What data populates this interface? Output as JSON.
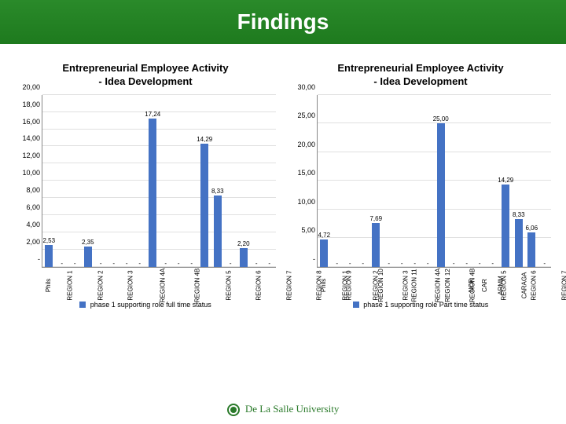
{
  "header": {
    "title": "Findings"
  },
  "footer": {
    "text": "De La Salle University"
  },
  "categories": [
    "Phils",
    "REGION 1",
    "REGION 2",
    "REGION 3",
    "REGION 4A",
    "REGION 4B",
    "REGION 5",
    "REGION 6",
    "REGION 7",
    "REGION 8",
    "REGION 9",
    "REGION 10",
    "REGION 11",
    "REGION 12",
    "NCR",
    "CAR",
    "ARMM",
    "CARAGA"
  ],
  "chart_left": {
    "title_line1": "Entrepreneurial Employee Activity",
    "title_line2": "- Idea Development",
    "type": "bar",
    "ymax": 20,
    "yticks": [
      "-",
      "2,00",
      "4,00",
      "6,00",
      "8,00",
      "10,00",
      "12,00",
      "14,00",
      "16,00",
      "18,00",
      "20,00"
    ],
    "values": [
      2.53,
      null,
      null,
      2.35,
      null,
      null,
      null,
      null,
      17.24,
      null,
      null,
      null,
      14.29,
      8.33,
      null,
      2.2,
      null,
      null
    ],
    "value_labels": [
      "2,53",
      "-",
      "-",
      "2,35",
      "-",
      "-",
      "-",
      "-",
      "17,24",
      "-",
      "-",
      "-",
      "14,29",
      "8,33",
      "-",
      "2,20",
      "-",
      "-"
    ],
    "bar_color": "#4472c4",
    "legend": "phase 1 supporting role full time status",
    "title_fontsize": 13,
    "label_fontsize": 9,
    "background_color": "#ffffff",
    "grid_color": "#e0e0e0"
  },
  "chart_right": {
    "title_line1": "Entrepreneurial Employee Activity",
    "title_line2": "- Idea Development",
    "type": "bar",
    "ymax": 30,
    "yticks": [
      "-",
      "5,00",
      "10,00",
      "15,00",
      "20,00",
      "25,00",
      "30,00"
    ],
    "values": [
      4.72,
      null,
      null,
      null,
      7.69,
      null,
      null,
      null,
      null,
      25.0,
      null,
      null,
      null,
      null,
      14.29,
      8.33,
      6.06,
      null
    ],
    "value_labels": [
      "4,72",
      "-",
      "-",
      "-",
      "7,69",
      "-",
      "-",
      "-",
      "-",
      "25,00",
      "-",
      "-",
      "-",
      "-",
      "14,29",
      "8,33",
      "6,06",
      "-"
    ],
    "bar_color": "#4472c4",
    "legend": "phase 1 supporting role Part time status",
    "title_fontsize": 13,
    "label_fontsize": 9,
    "background_color": "#ffffff",
    "grid_color": "#e0e0e0"
  }
}
